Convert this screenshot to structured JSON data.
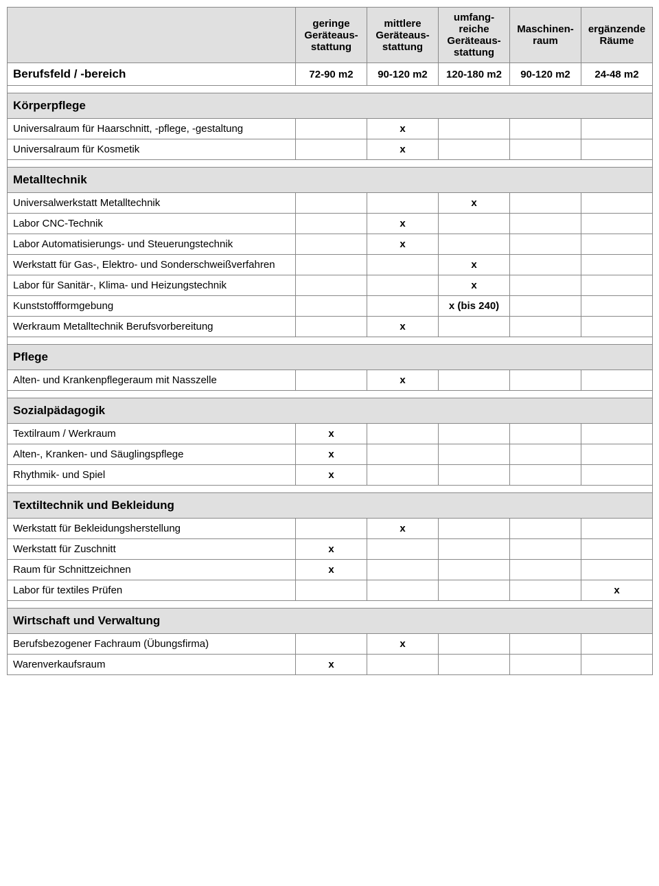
{
  "columns": [
    {
      "header_line1": "geringe",
      "header_line2": "Geräteaus-",
      "header_line3": "stattung",
      "range": "72-90 m2"
    },
    {
      "header_line1": "mittlere",
      "header_line2": "Geräteaus-",
      "header_line3": "stattung",
      "range": "90-120 m2"
    },
    {
      "header_line1": "umfang-",
      "header_line2": "reiche",
      "header_line3": "Geräteaus-",
      "header_line4": "stattung",
      "range": "120-180 m2"
    },
    {
      "header_line1": "Maschinen-",
      "header_line2": "raum",
      "range": "90-120 m2"
    },
    {
      "header_line1": "ergänzende",
      "header_line2": "Räume",
      "range": "24-48 m2"
    }
  ],
  "row_header_label": "Berufsfeld / -bereich",
  "sections": [
    {
      "title": "Körperpflege",
      "rows": [
        {
          "label": "Universalraum für Haarschnitt, -pflege, -gestaltung",
          "marks": [
            "",
            "x",
            "",
            "",
            ""
          ]
        },
        {
          "label": "Universalraum für Kosmetik",
          "marks": [
            "",
            "x",
            "",
            "",
            ""
          ]
        }
      ]
    },
    {
      "title": "Metalltechnik",
      "rows": [
        {
          "label": "Universalwerkstatt Metalltechnik",
          "marks": [
            "",
            "",
            "x",
            "",
            ""
          ]
        },
        {
          "label": "Labor CNC-Technik",
          "marks": [
            "",
            "x",
            "",
            "",
            ""
          ]
        },
        {
          "label": "Labor Automatisierungs- und Steuerungstechnik",
          "marks": [
            "",
            "x",
            "",
            "",
            ""
          ]
        },
        {
          "label": "Werkstatt für Gas-, Elektro- und Sonderschweißverfahren",
          "marks": [
            "",
            "",
            "x",
            "",
            ""
          ]
        },
        {
          "label": "Labor für Sanitär-, Klima- und Heizungstechnik",
          "marks": [
            "",
            "",
            "x",
            "",
            ""
          ]
        },
        {
          "label": "Kunststoffformgebung",
          "marks": [
            "",
            "",
            "x (bis 240)",
            "",
            ""
          ]
        },
        {
          "label": "Werkraum Metalltechnik Berufsvorbereitung",
          "marks": [
            "",
            "x",
            "",
            "",
            ""
          ]
        }
      ]
    },
    {
      "title": "Pflege",
      "rows": [
        {
          "label": "Alten- und Krankenpflegeraum mit Nasszelle",
          "marks": [
            "",
            "x",
            "",
            "",
            ""
          ]
        }
      ]
    },
    {
      "title": "Sozialpädagogik",
      "rows": [
        {
          "label": "Textilraum / Werkraum",
          "marks": [
            "x",
            "",
            "",
            "",
            ""
          ]
        },
        {
          "label": "Alten-, Kranken- und Säuglingspflege",
          "marks": [
            "x",
            "",
            "",
            "",
            ""
          ]
        },
        {
          "label": "Rhythmik- und Spiel",
          "marks": [
            "x",
            "",
            "",
            "",
            ""
          ]
        }
      ]
    },
    {
      "title": "Textiltechnik und Bekleidung",
      "rows": [
        {
          "label": "Werkstatt für Bekleidungsherstellung",
          "marks": [
            "",
            "x",
            "",
            "",
            ""
          ]
        },
        {
          "label": "Werkstatt für Zuschnitt",
          "marks": [
            "x",
            "",
            "",
            "",
            ""
          ]
        },
        {
          "label": "Raum für Schnittzeichnen",
          "marks": [
            "x",
            "",
            "",
            "",
            ""
          ]
        },
        {
          "label": "Labor für textiles Prüfen",
          "marks": [
            "",
            "",
            "",
            "",
            "x"
          ]
        }
      ]
    },
    {
      "title": "Wirtschaft und Verwaltung",
      "rows": [
        {
          "label": "Berufsbezogener Fachraum (Übungsfirma)",
          "marks": [
            "",
            "x",
            "",
            "",
            ""
          ]
        },
        {
          "label": "Warenverkaufsraum",
          "marks": [
            "x",
            "",
            "",
            "",
            ""
          ]
        }
      ]
    }
  ]
}
